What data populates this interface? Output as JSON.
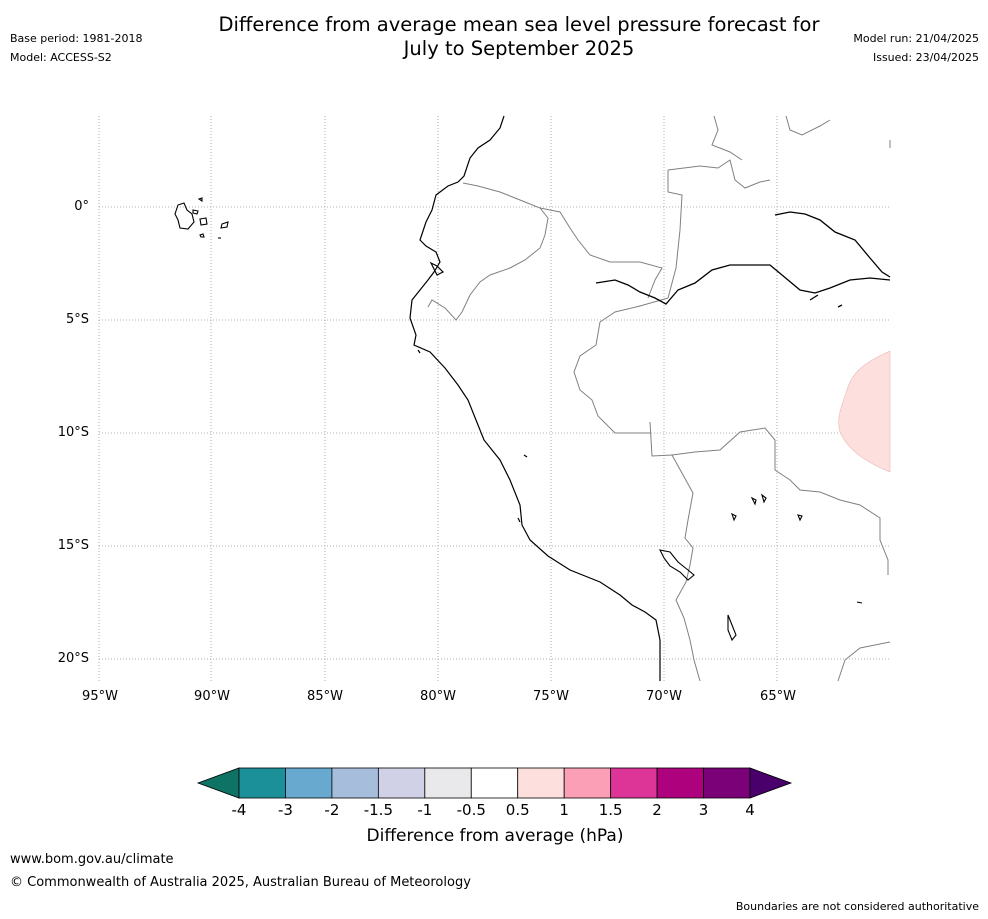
{
  "header": {
    "title_line1": "Difference from average mean sea level pressure forecast for",
    "title_line2": "July to September 2025",
    "base_period": "Base period: 1981-2018",
    "model": "Model: ACCESS-S2",
    "model_run": "Model run: 21/04/2025",
    "issued": "Issued: 23/04/2025"
  },
  "map": {
    "lat_labels": [
      "0°",
      "5°S",
      "10°S",
      "15°S",
      "20°S"
    ],
    "lon_labels": [
      "95°W",
      "90°W",
      "85°W",
      "80°W",
      "75°W",
      "70°W",
      "65°W"
    ],
    "anomaly_region": {
      "value_range_hpa": "0.5 to 1",
      "color": "#fde0dd"
    },
    "colors": {
      "coast": "#000000",
      "border": "#808080",
      "grid": "#999999"
    }
  },
  "colorbar": {
    "ticks": [
      "-4",
      "-3",
      "-2",
      "-1.5",
      "-1",
      "-0.5",
      "0.5",
      "1",
      "1.5",
      "2",
      "3",
      "4"
    ],
    "colors": [
      "#0e7364",
      "#1c9099",
      "#67a9cf",
      "#a6bddb",
      "#d0d1e6",
      "#e9e8ea",
      "#ffffff",
      "#fde0dd",
      "#fa9fb5",
      "#dd3497",
      "#ae017e",
      "#7a0177",
      "#49006a"
    ],
    "label": "Difference from average (hPa)"
  },
  "footer": {
    "url": "www.bom.gov.au/climate",
    "copyright": "© Commonwealth of Australia 2025, Australian Bureau of Meteorology",
    "note": "Boundaries are not considered authoritative"
  }
}
